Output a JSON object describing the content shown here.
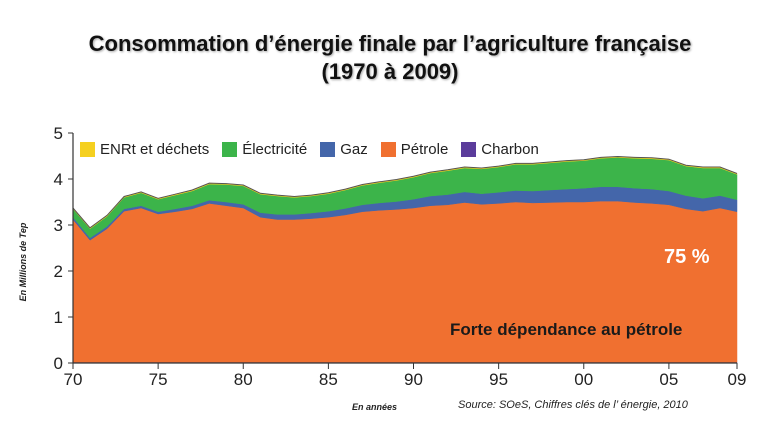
{
  "title_line1": "Consommation d’énergie finale par l’agriculture française",
  "title_line2": "(1970 à 2009)",
  "annotation_pct": "75 %",
  "annotation_text": "Forte dépendance au pétrole",
  "source": "Source: SOeS, Chiffres clés de l’ énergie, 2010",
  "chart_data": {
    "type": "area",
    "stacked": true,
    "ylabel": "En Millions de Tep",
    "xlabel": "En années",
    "ylim": [
      0,
      5
    ],
    "xlim": [
      1970,
      2009
    ],
    "yticks": [
      0,
      1,
      2,
      3,
      4,
      5
    ],
    "xticks": [
      {
        "value": 1970,
        "label": "70"
      },
      {
        "value": 1975,
        "label": "75"
      },
      {
        "value": 1980,
        "label": "80"
      },
      {
        "value": 1985,
        "label": "85"
      },
      {
        "value": 1990,
        "label": "90"
      },
      {
        "value": 1995,
        "label": "95"
      },
      {
        "value": 2000,
        "label": "00"
      },
      {
        "value": 2005,
        "label": "05"
      },
      {
        "value": 2009,
        "label": "09"
      }
    ],
    "legend_position": "top",
    "x": [
      1970,
      1971,
      1972,
      1973,
      1974,
      1975,
      1976,
      1977,
      1978,
      1979,
      1980,
      1981,
      1982,
      1983,
      1984,
      1985,
      1986,
      1987,
      1988,
      1989,
      1990,
      1991,
      1992,
      1993,
      1994,
      1995,
      1996,
      1997,
      1998,
      1999,
      2000,
      2001,
      2002,
      2003,
      2004,
      2005,
      2006,
      2007,
      2008,
      2009
    ],
    "series": [
      {
        "name": "Charbon",
        "color": "#5b3c9b",
        "values": [
          0.02,
          0.02,
          0.02,
          0.02,
          0.02,
          0.02,
          0.02,
          0.02,
          0.02,
          0.02,
          0.02,
          0.02,
          0.02,
          0.02,
          0.02,
          0.02,
          0.02,
          0.02,
          0.02,
          0.02,
          0.02,
          0.02,
          0.02,
          0.02,
          0.02,
          0.02,
          0.02,
          0.02,
          0.02,
          0.02,
          0.02,
          0.02,
          0.02,
          0.02,
          0.02,
          0.02,
          0.02,
          0.02,
          0.02,
          0.02
        ]
      },
      {
        "name": "Pétrole",
        "color": "#f07030",
        "values": [
          3.1,
          2.65,
          2.9,
          3.28,
          3.35,
          3.22,
          3.27,
          3.33,
          3.45,
          3.4,
          3.35,
          3.15,
          3.1,
          3.1,
          3.12,
          3.15,
          3.2,
          3.27,
          3.3,
          3.32,
          3.35,
          3.4,
          3.42,
          3.47,
          3.43,
          3.45,
          3.48,
          3.46,
          3.47,
          3.48,
          3.48,
          3.5,
          3.5,
          3.47,
          3.45,
          3.42,
          3.33,
          3.28,
          3.35,
          3.27
        ]
      },
      {
        "name": "Gaz",
        "color": "#4466aa",
        "values": [
          0.05,
          0.05,
          0.05,
          0.05,
          0.05,
          0.05,
          0.06,
          0.07,
          0.07,
          0.08,
          0.08,
          0.1,
          0.11,
          0.11,
          0.12,
          0.13,
          0.14,
          0.15,
          0.16,
          0.17,
          0.19,
          0.21,
          0.22,
          0.23,
          0.23,
          0.24,
          0.25,
          0.26,
          0.27,
          0.28,
          0.3,
          0.31,
          0.31,
          0.31,
          0.31,
          0.3,
          0.29,
          0.28,
          0.27,
          0.26
        ]
      },
      {
        "name": "Électricité",
        "color": "#3cb44a",
        "values": [
          0.18,
          0.2,
          0.22,
          0.25,
          0.28,
          0.27,
          0.3,
          0.32,
          0.35,
          0.38,
          0.4,
          0.4,
          0.4,
          0.37,
          0.37,
          0.38,
          0.4,
          0.42,
          0.44,
          0.46,
          0.48,
          0.5,
          0.52,
          0.52,
          0.54,
          0.55,
          0.57,
          0.58,
          0.59,
          0.6,
          0.6,
          0.62,
          0.64,
          0.65,
          0.66,
          0.67,
          0.64,
          0.66,
          0.6,
          0.55
        ]
      },
      {
        "name": "ENRt et déchets",
        "color": "#f5d020",
        "values": [
          0.02,
          0.02,
          0.02,
          0.02,
          0.02,
          0.02,
          0.02,
          0.02,
          0.02,
          0.02,
          0.02,
          0.02,
          0.02,
          0.02,
          0.02,
          0.02,
          0.02,
          0.02,
          0.02,
          0.02,
          0.02,
          0.02,
          0.02,
          0.02,
          0.02,
          0.02,
          0.02,
          0.02,
          0.02,
          0.02,
          0.02,
          0.02,
          0.02,
          0.02,
          0.02,
          0.02,
          0.02,
          0.02,
          0.02,
          0.02
        ]
      }
    ],
    "legend_order": [
      "ENRt et déchets",
      "Électricité",
      "Gaz",
      "Pétrole",
      "Charbon"
    ]
  }
}
